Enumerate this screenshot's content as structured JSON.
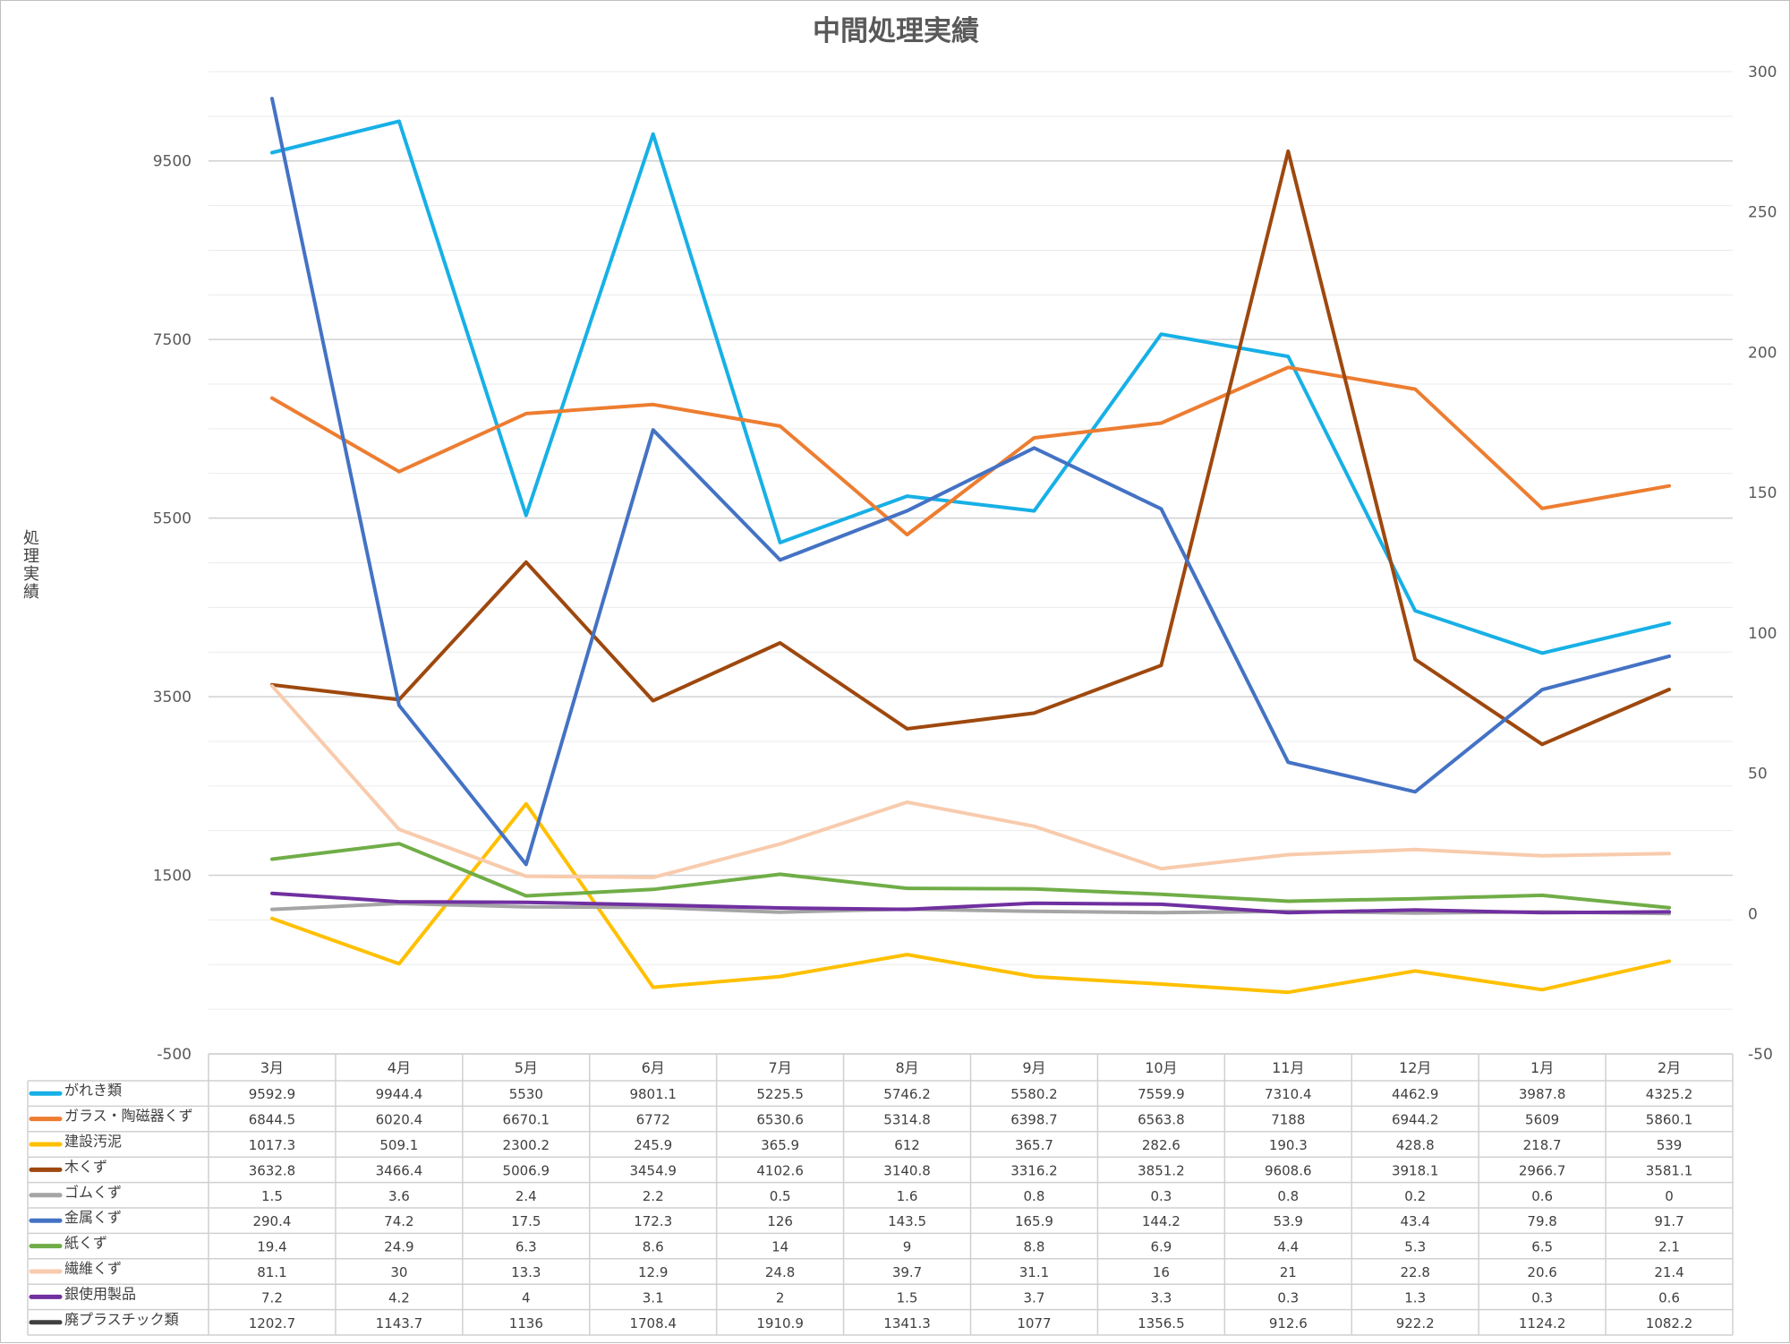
{
  "chart_data": {
    "type": "line",
    "title": "中間処理実績",
    "ylabel": "処理実績",
    "y_left": {
      "ticks": [
        "-500",
        "1500",
        "3500",
        "5500",
        "7500",
        "9500"
      ],
      "range": [
        -500,
        10500
      ]
    },
    "y_right": {
      "ticks": [
        "-50",
        "0",
        "50",
        "100",
        "150",
        "200",
        "250",
        "300"
      ],
      "range": [
        -50,
        300
      ]
    },
    "categories": [
      "3月",
      "4月",
      "5月",
      "6月",
      "7月",
      "8月",
      "9月",
      "10月",
      "11月",
      "12月",
      "1月",
      "2月"
    ],
    "legend_position": "data-table",
    "series": [
      {
        "name": "がれき類",
        "color": "#17b0e6",
        "axis": "left",
        "values": [
          "9592.9",
          "9944.4",
          "5530",
          "9801.1",
          "5225.5",
          "5746.2",
          "5580.2",
          "7559.9",
          "7310.4",
          "4462.9",
          "3987.8",
          "4325.2"
        ]
      },
      {
        "name": "ガラス・陶磁器くず",
        "color": "#ed7d31",
        "axis": "left",
        "values": [
          "6844.5",
          "6020.4",
          "6670.1",
          "6772",
          "6530.6",
          "5314.8",
          "6398.7",
          "6563.8",
          "7188",
          "6944.2",
          "5609",
          "5860.1"
        ]
      },
      {
        "name": "建設汚泥",
        "color": "#ffc000",
        "axis": "left",
        "values": [
          "1017.3",
          "509.1",
          "2300.2",
          "245.9",
          "365.9",
          "612",
          "365.7",
          "282.6",
          "190.3",
          "428.8",
          "218.7",
          "539"
        ]
      },
      {
        "name": "木くず",
        "color": "#9e480e",
        "axis": "left",
        "values": [
          "3632.8",
          "3466.4",
          "5006.9",
          "3454.9",
          "4102.6",
          "3140.8",
          "3316.2",
          "3851.2",
          "9608.6",
          "3918.1",
          "2966.7",
          "3581.1"
        ]
      },
      {
        "name": "ゴムくず",
        "color": "#a5a5a5",
        "axis": "right",
        "values": [
          "1.5",
          "3.6",
          "2.4",
          "2.2",
          "0.5",
          "1.6",
          "0.8",
          "0.3",
          "0.8",
          "0.2",
          "0.6",
          "0"
        ]
      },
      {
        "name": "金属くず",
        "color": "#4472c4",
        "axis": "right",
        "values": [
          "290.4",
          "74.2",
          "17.5",
          "172.3",
          "126",
          "143.5",
          "165.9",
          "144.2",
          "53.9",
          "43.4",
          "79.8",
          "91.7"
        ]
      },
      {
        "name": "紙くず",
        "color": "#70ad47",
        "axis": "right",
        "values": [
          "19.4",
          "24.9",
          "6.3",
          "8.6",
          "14",
          "9",
          "8.8",
          "6.9",
          "4.4",
          "5.3",
          "6.5",
          "2.1"
        ]
      },
      {
        "name": "繊維くず",
        "color": "#f8cbad",
        "axis": "right",
        "values": [
          "81.1",
          "30",
          "13.3",
          "12.9",
          "24.8",
          "39.7",
          "31.1",
          "16",
          "21",
          "22.8",
          "20.6",
          "21.4"
        ]
      },
      {
        "name": "銀使用製品",
        "color": "#7030a0",
        "axis": "right",
        "values": [
          "7.2",
          "4.2",
          "4",
          "3.1",
          "2",
          "1.5",
          "3.7",
          "3.3",
          "0.3",
          "1.3",
          "0.3",
          "0.6"
        ]
      },
      {
        "name": "廃プラスチック類",
        "color": "#404040",
        "axis": "none",
        "values": [
          "1202.7",
          "1143.7",
          "1136",
          "1708.4",
          "1910.9",
          "1341.3",
          "1077",
          "1356.5",
          "912.6",
          "922.2",
          "1124.2",
          "1082.2"
        ]
      }
    ]
  }
}
